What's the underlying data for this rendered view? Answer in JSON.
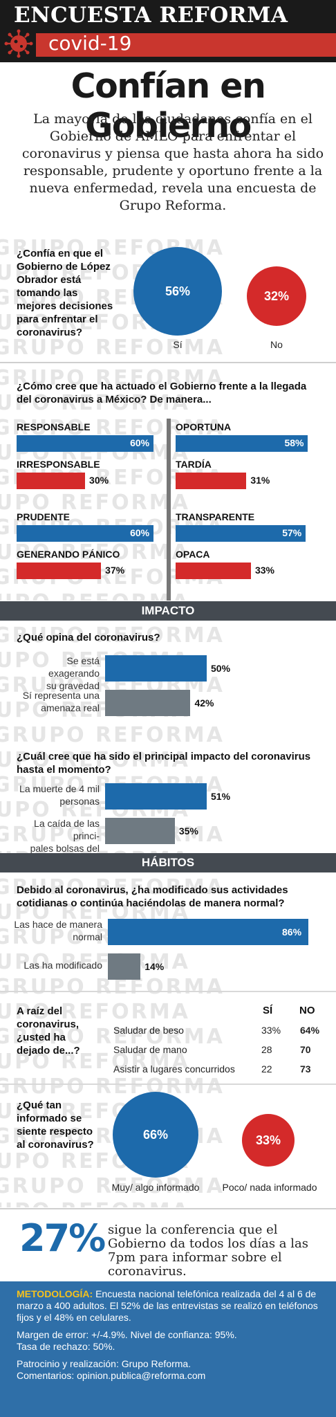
{
  "header": {
    "masthead": "ENCUESTA REFORMA",
    "tag": "covid-19",
    "headline": "Confían en Gobierno",
    "intro": "La mayoría de los ciudadanos confía en el Gobierno de AMLO para enfrentar el coronavirus y piensa que hasta ahora ha sido responsable, prudente y oportuno frente a la nueva enfermedad, revela una encuesta de Grupo Reforma."
  },
  "watermark": "GRUPO REFORMA",
  "colors": {
    "blue": "#1d6aab",
    "red": "#d42a2a",
    "gray": "#6f7a82",
    "dark": "#444a51"
  },
  "q_confia": {
    "question": "¿Confía en que el Gobierno de López Obrador está tomando las mejores decisiones para enfrentar el coronavirus?",
    "si_value": "56%",
    "si_label": "Sí",
    "no_value": "32%",
    "no_label": "No"
  },
  "q_actuado": {
    "question": "¿Cómo cree que ha actuado el Gobierno frente a la llegada del coronavirus a México? De manera...",
    "pairs": [
      {
        "pos_label": "RESPONSABLE",
        "pos_value": 60,
        "pos_text": "60%",
        "neg_label": "IRRESPONSABLE",
        "neg_value": 30,
        "neg_text": "30%"
      },
      {
        "pos_label": "OPORTUNA",
        "pos_value": 58,
        "pos_text": "58%",
        "neg_label": "TARDÍA",
        "neg_value": 31,
        "neg_text": "31%"
      },
      {
        "pos_label": "PRUDENTE",
        "pos_value": 60,
        "pos_text": "60%",
        "neg_label": "GENERANDO PÁNICO",
        "neg_value": 37,
        "neg_text": "37%"
      },
      {
        "pos_label": "TRANSPARENTE",
        "pos_value": 57,
        "pos_text": "57%",
        "neg_label": "OPACA",
        "neg_value": 33,
        "neg_text": "33%"
      }
    ]
  },
  "impacto": {
    "title": "IMPACTO",
    "q1": "¿Qué opina del coronavirus?",
    "q1_items": [
      {
        "label1": "Se está exagerando",
        "label2": "su gravedad",
        "value": 50,
        "text": "50%"
      },
      {
        "label1": "Sí representa una",
        "label2": "amenaza real",
        "value": 42,
        "text": "42%"
      }
    ],
    "q2": "¿Cuál cree que ha sido el principal impacto del coronavirus hasta el momento?",
    "q2_items": [
      {
        "label1": "La muerte de 4 mil",
        "label2": "personas",
        "value": 51,
        "text": "51%"
      },
      {
        "label1": "La caída de las princi-",
        "label2": "pales bolsas del mundo",
        "value": 35,
        "text": "35%"
      }
    ]
  },
  "habitos": {
    "title": "HÁBITOS",
    "q1": "Debido al coronavirus, ¿ha modificado sus actividades cotidianas o continúa haciéndolas de manera normal?",
    "q1_items": [
      {
        "label1": "Las hace de manera",
        "label2": "normal",
        "value": 86,
        "text": "86%"
      },
      {
        "label1": "Las ha modificado",
        "label2": "",
        "value": 14,
        "text": "14%"
      }
    ],
    "q2": "A raíz del coronavirus, ¿usted ha dejado de...?",
    "col_si": "SÍ",
    "col_no": "NO",
    "rows": [
      {
        "label": "Saludar de beso",
        "si": "33%",
        "no": "64%"
      },
      {
        "label": "Saludar de mano",
        "si": "28",
        "no": "70"
      },
      {
        "label": "Asistir a lugares concurridos",
        "si": "22",
        "no": "73"
      }
    ],
    "q3": "¿Qué tan informado se siente respecto al coronavirus?",
    "inf_value": "66%",
    "inf_label": "Muy/ algo informado",
    "poco_value": "33%",
    "poco_label": "Poco/ nada informado"
  },
  "conferencia": {
    "value": "27%",
    "text": "sigue la conferencia que el Gobierno da todos los días a las 7pm para informar sobre el coronavirus."
  },
  "metodologia": {
    "label": "METODOLOGÍA:",
    "text": "Encuesta nacional telefónica realizada del 4 al 6 de marzo a 400 adultos. El 52% de las entrevistas se realizó en teléfonos fijos y el 48% en celulares.",
    "margen": "Margen de error: +/-4.9%. Nivel de confianza: 95%.",
    "tasa": "Tasa de rechazo: 50%.",
    "patrocinio": "Patrocinio y realización: Grupo Reforma.",
    "comentarios": "Comentarios: opinion.publica@reforma.com"
  },
  "chart_data": [
    {
      "type": "bar",
      "title": "¿Confía en que el Gobierno de López Obrador está tomando las mejores decisiones para enfrentar el coronavirus?",
      "categories": [
        "Sí",
        "No"
      ],
      "values": [
        56,
        32
      ]
    },
    {
      "type": "bar",
      "title": "¿Cómo cree que ha actuado el Gobierno frente a la llegada del coronavirus a México? De manera...",
      "categories": [
        "RESPONSABLE",
        "IRRESPONSABLE",
        "OPORTUNA",
        "TARDÍA",
        "PRUDENTE",
        "GENERANDO PÁNICO",
        "TRANSPARENTE",
        "OPACA"
      ],
      "values": [
        60,
        30,
        58,
        31,
        60,
        37,
        57,
        33
      ]
    },
    {
      "type": "bar",
      "title": "¿Qué opina del coronavirus?",
      "categories": [
        "Se está exagerando su gravedad",
        "Sí representa una amenaza real"
      ],
      "values": [
        50,
        42
      ]
    },
    {
      "type": "bar",
      "title": "¿Cuál cree que ha sido el principal impacto del coronavirus hasta el momento?",
      "categories": [
        "La muerte de 4 mil personas",
        "La caída de las principales bolsas del mundo"
      ],
      "values": [
        51,
        35
      ]
    },
    {
      "type": "bar",
      "title": "Debido al coronavirus, ¿ha modificado sus actividades cotidianas o continúa haciéndolas de manera normal?",
      "categories": [
        "Las hace de manera normal",
        "Las ha modificado"
      ],
      "values": [
        86,
        14
      ]
    },
    {
      "type": "table",
      "title": "A raíz del coronavirus, ¿usted ha dejado de...?",
      "columns": [
        "SÍ",
        "NO"
      ],
      "rows": [
        [
          "Saludar de beso",
          33,
          64
        ],
        [
          "Saludar de mano",
          28,
          70
        ],
        [
          "Asistir a lugares concurridos",
          22,
          73
        ]
      ]
    },
    {
      "type": "bar",
      "title": "¿Qué tan informado se siente respecto al coronavirus?",
      "categories": [
        "Muy/ algo informado",
        "Poco/ nada informado"
      ],
      "values": [
        66,
        33
      ]
    }
  ]
}
